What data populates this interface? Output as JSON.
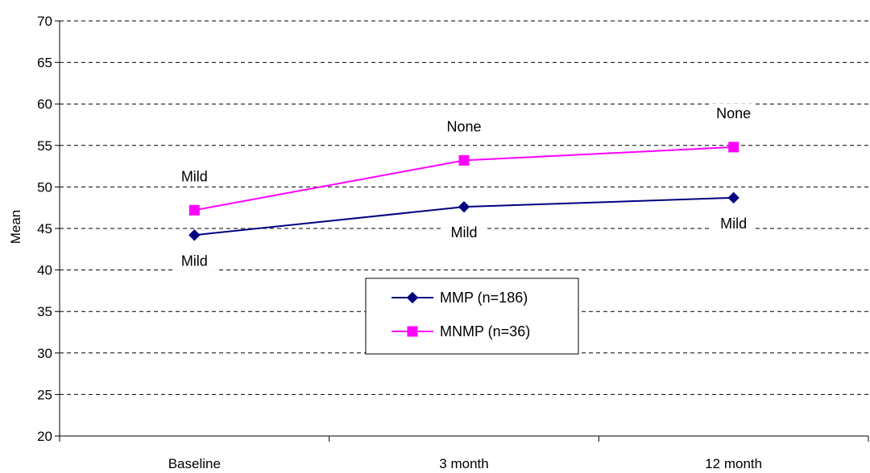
{
  "chart_data": {
    "type": "line",
    "categories": [
      "Baseline",
      "3 month",
      "12 month"
    ],
    "ylabel": "Mean",
    "ylim": [
      20,
      70
    ],
    "yticks": [
      20,
      25,
      30,
      35,
      40,
      45,
      50,
      55,
      60,
      65,
      70
    ],
    "grid": "horizontal dashed",
    "legend_position": "center",
    "series": [
      {
        "name": "MMP (n=186)",
        "color": "#000080",
        "marker": "diamond",
        "values": [
          44.2,
          47.6,
          48.7
        ],
        "labels": [
          "Mild",
          "Mild",
          "Mild"
        ],
        "label_position": "below"
      },
      {
        "name": "MNMP (n=36)",
        "color": "#ff00ff",
        "marker": "square",
        "values": [
          47.2,
          53.2,
          54.8
        ],
        "labels": [
          "Mild",
          "None",
          "None"
        ],
        "label_position": "above"
      }
    ]
  }
}
